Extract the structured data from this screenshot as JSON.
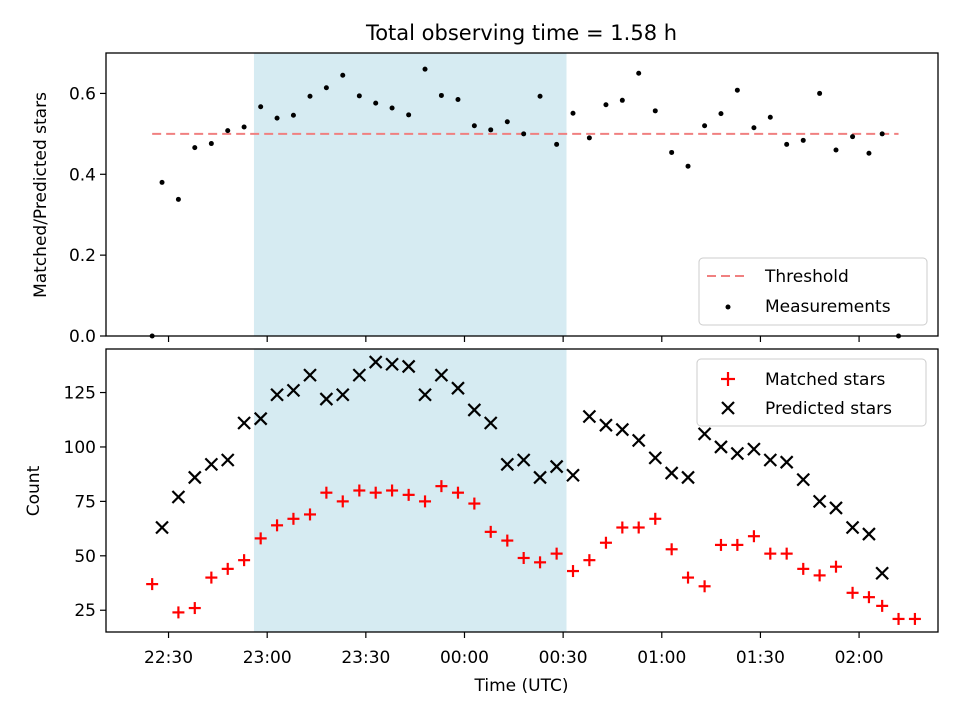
{
  "chart_data": [
    {
      "type": "scatter",
      "title": "Total observing time = 1.58 h",
      "ylabel": "Matched/Predicted stars",
      "xlabel": "",
      "ylim": [
        0,
        0.7
      ],
      "yticks": [
        0.0,
        0.2,
        0.4,
        0.6
      ],
      "ytick_labels": [
        "0.0",
        "0.2",
        "0.4",
        "0.6"
      ],
      "threshold": {
        "name": "Threshold",
        "value": 0.5,
        "color": "#f08080",
        "x_range": [
          22.417,
          2.2
        ]
      },
      "highlight": {
        "x_range": [
          22.933,
          0.517
        ],
        "color": "#add8e6"
      },
      "legend_position": "lower right",
      "series": [
        {
          "name": "Measurements",
          "color": "#000000",
          "marker": "dot",
          "points": [
            [
              22.417,
              0.0
            ],
            [
              22.467,
              0.38
            ],
            [
              22.55,
              0.338
            ],
            [
              22.633,
              0.466
            ],
            [
              22.717,
              0.476
            ],
            [
              22.8,
              0.508
            ],
            [
              22.883,
              0.517
            ],
            [
              22.967,
              0.567
            ],
            [
              23.05,
              0.539
            ],
            [
              23.133,
              0.546
            ],
            [
              23.217,
              0.593
            ],
            [
              23.3,
              0.614
            ],
            [
              23.383,
              0.645
            ],
            [
              23.467,
              0.594
            ],
            [
              23.55,
              0.576
            ],
            [
              23.633,
              0.564
            ],
            [
              23.717,
              0.547
            ],
            [
              23.8,
              0.66
            ],
            [
              23.883,
              0.595
            ],
            [
              23.967,
              0.585
            ],
            [
              0.05,
              0.52
            ],
            [
              0.133,
              0.51
            ],
            [
              0.217,
              0.53
            ],
            [
              0.3,
              0.5
            ],
            [
              0.383,
              0.593
            ],
            [
              0.467,
              0.474
            ],
            [
              0.55,
              0.551
            ],
            [
              0.633,
              0.49
            ],
            [
              0.717,
              0.572
            ],
            [
              0.8,
              0.583
            ],
            [
              0.883,
              0.65
            ],
            [
              0.967,
              0.557
            ],
            [
              1.05,
              0.454
            ],
            [
              1.133,
              0.42
            ],
            [
              1.217,
              0.52
            ],
            [
              1.3,
              0.55
            ],
            [
              1.383,
              0.608
            ],
            [
              1.467,
              0.515
            ],
            [
              1.55,
              0.541
            ],
            [
              1.633,
              0.474
            ],
            [
              1.717,
              0.484
            ],
            [
              1.8,
              0.6
            ],
            [
              1.883,
              0.46
            ],
            [
              1.967,
              0.493
            ],
            [
              2.05,
              0.452
            ],
            [
              2.117,
              0.5
            ],
            [
              2.2,
              0.0
            ]
          ]
        }
      ]
    },
    {
      "type": "scatter",
      "title": "",
      "xlabel": "Time (UTC)",
      "ylabel": "Count",
      "ylim": [
        15,
        145
      ],
      "yticks": [
        25,
        50,
        75,
        100,
        125
      ],
      "ytick_labels": [
        "25",
        "50",
        "75",
        "100",
        "125"
      ],
      "xticks": [
        22.5,
        23.0,
        23.5,
        0.0,
        0.5,
        1.0,
        1.5,
        2.0
      ],
      "xtick_labels": [
        "22:30",
        "23:00",
        "23:30",
        "00:00",
        "00:30",
        "01:00",
        "01:30",
        "02:00"
      ],
      "xlim": [
        22.183,
        2.4
      ],
      "highlight": {
        "x_range": [
          22.933,
          0.517
        ],
        "color": "#add8e6"
      },
      "legend_position": "upper right",
      "series": [
        {
          "name": "Matched stars",
          "color": "#ff0000",
          "marker": "plus",
          "points": [
            [
              22.417,
              37
            ],
            [
              22.55,
              24
            ],
            [
              22.633,
              26
            ],
            [
              22.717,
              40
            ],
            [
              22.8,
              44
            ],
            [
              22.883,
              48
            ],
            [
              22.967,
              58
            ],
            [
              23.05,
              64
            ],
            [
              23.133,
              67
            ],
            [
              23.217,
              69
            ],
            [
              23.3,
              79
            ],
            [
              23.383,
              75
            ],
            [
              23.467,
              80
            ],
            [
              23.55,
              79
            ],
            [
              23.633,
              80
            ],
            [
              23.717,
              78
            ],
            [
              23.8,
              75
            ],
            [
              23.883,
              82
            ],
            [
              23.967,
              79
            ],
            [
              0.05,
              74
            ],
            [
              0.133,
              61
            ],
            [
              0.217,
              57
            ],
            [
              0.3,
              49
            ],
            [
              0.383,
              47
            ],
            [
              0.467,
              51
            ],
            [
              0.55,
              43
            ],
            [
              0.633,
              48
            ],
            [
              0.717,
              56
            ],
            [
              0.8,
              63
            ],
            [
              0.883,
              63
            ],
            [
              0.967,
              67
            ],
            [
              1.05,
              53
            ],
            [
              1.133,
              40
            ],
            [
              1.217,
              36
            ],
            [
              1.3,
              55
            ],
            [
              1.383,
              55
            ],
            [
              1.467,
              59
            ],
            [
              1.55,
              51
            ],
            [
              1.633,
              51
            ],
            [
              1.717,
              44
            ],
            [
              1.8,
              41
            ],
            [
              1.883,
              45
            ],
            [
              1.967,
              33
            ],
            [
              2.05,
              31
            ],
            [
              2.117,
              27
            ],
            [
              2.2,
              21
            ],
            [
              2.283,
              21
            ]
          ]
        },
        {
          "name": "Predicted stars",
          "color": "#000000",
          "marker": "x",
          "points": [
            [
              22.467,
              63
            ],
            [
              22.55,
              77
            ],
            [
              22.633,
              86
            ],
            [
              22.717,
              92
            ],
            [
              22.8,
              94
            ],
            [
              22.883,
              111
            ],
            [
              22.967,
              113
            ],
            [
              23.05,
              124
            ],
            [
              23.133,
              126
            ],
            [
              23.217,
              133
            ],
            [
              23.3,
              122
            ],
            [
              23.383,
              124
            ],
            [
              23.467,
              133
            ],
            [
              23.55,
              139
            ],
            [
              23.633,
              138
            ],
            [
              23.717,
              137
            ],
            [
              23.8,
              124
            ],
            [
              23.883,
              133
            ],
            [
              23.967,
              127
            ],
            [
              0.05,
              117
            ],
            [
              0.133,
              111
            ],
            [
              0.217,
              92
            ],
            [
              0.3,
              94
            ],
            [
              0.383,
              86
            ],
            [
              0.467,
              91
            ],
            [
              0.55,
              87
            ],
            [
              0.633,
              114
            ],
            [
              0.717,
              110
            ],
            [
              0.8,
              108
            ],
            [
              0.883,
              103
            ],
            [
              0.967,
              95
            ],
            [
              1.05,
              88
            ],
            [
              1.133,
              86
            ],
            [
              1.217,
              106
            ],
            [
              1.3,
              100
            ],
            [
              1.383,
              97
            ],
            [
              1.467,
              99
            ],
            [
              1.55,
              94
            ],
            [
              1.633,
              93
            ],
            [
              1.717,
              85
            ],
            [
              1.8,
              75
            ],
            [
              1.883,
              72
            ],
            [
              1.967,
              63
            ],
            [
              2.05,
              60
            ],
            [
              2.117,
              42
            ]
          ]
        }
      ]
    }
  ]
}
